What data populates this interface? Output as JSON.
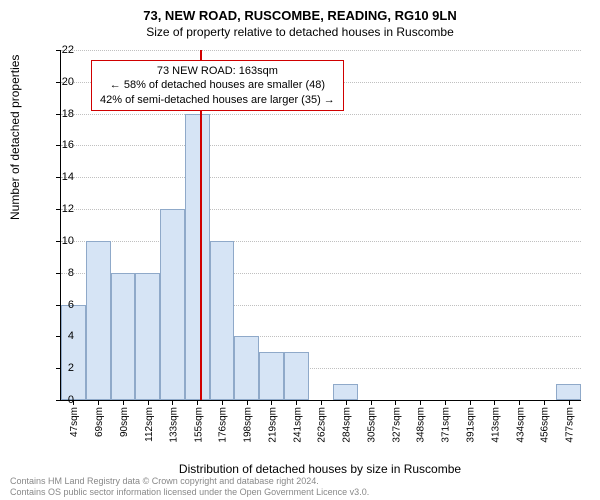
{
  "title": "73, NEW ROAD, RUSCOMBE, READING, RG10 9LN",
  "subtitle": "Size of property relative to detached houses in Ruscombe",
  "ylabel": "Number of detached properties",
  "xlabel": "Distribution of detached houses by size in Ruscombe",
  "chart": {
    "type": "histogram",
    "bar_fill": "#d6e4f5",
    "bar_stroke": "#8fa9c9",
    "marker_color": "#d00000",
    "grid_color": "#c0c0c0",
    "background": "#ffffff",
    "ylim": [
      0,
      22
    ],
    "ytick_step": 2,
    "xlabels": [
      "47sqm",
      "69sqm",
      "90sqm",
      "112sqm",
      "133sqm",
      "155sqm",
      "176sqm",
      "198sqm",
      "219sqm",
      "241sqm",
      "262sqm",
      "284sqm",
      "305sqm",
      "327sqm",
      "348sqm",
      "371sqm",
      "391sqm",
      "413sqm",
      "434sqm",
      "456sqm",
      "477sqm"
    ],
    "values": [
      6,
      10,
      8,
      8,
      12,
      18,
      10,
      4,
      3,
      3,
      0,
      1,
      0,
      0,
      0,
      0,
      0,
      0,
      0,
      0,
      1
    ],
    "marker_index": 5.6,
    "bar_width": 1.0
  },
  "annotation": {
    "line1": "73 NEW ROAD: 163sqm",
    "line2": "← 58% of detached houses are smaller (48)",
    "line3": "42% of semi-detached houses are larger (35) →"
  },
  "footer": {
    "line1": "Contains HM Land Registry data © Crown copyright and database right 2024.",
    "line2": "Contains OS public sector information licensed under the Open Government Licence v3.0."
  }
}
